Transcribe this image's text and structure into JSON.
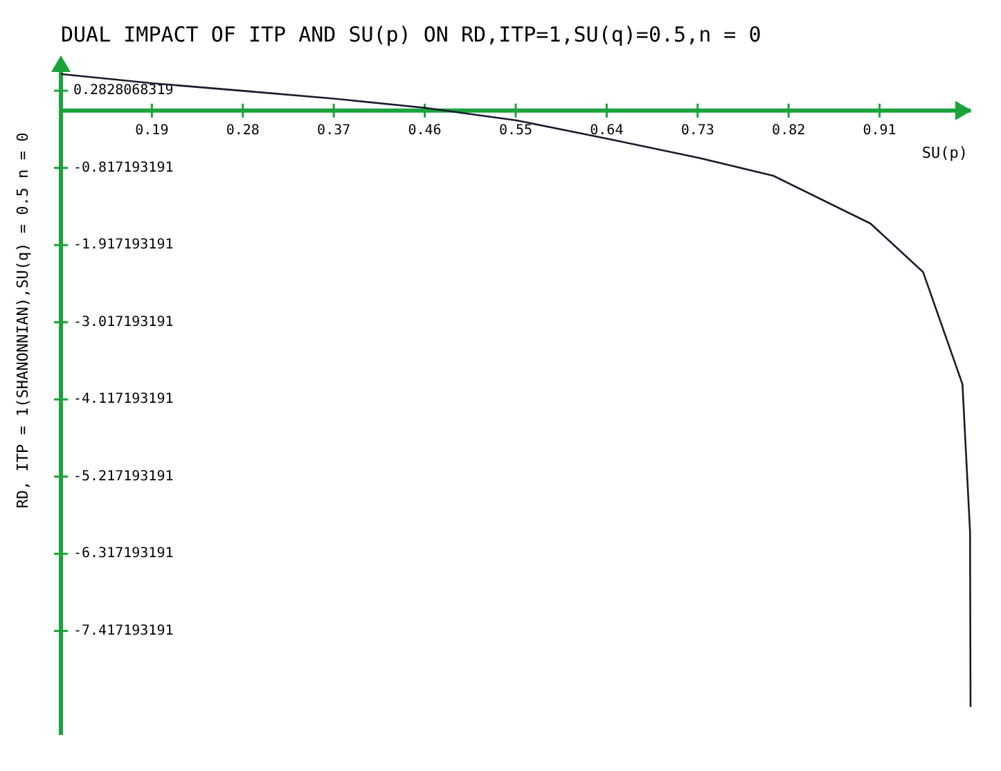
{
  "chart_data": {
    "type": "line",
    "title": "DUAL IMPACT OF ITP AND SU(p) ON RD,ITP=1,SU(q)=0.5,n = 0",
    "xlabel": "SU(p)",
    "ylabel": "RD, ITP = 1(SHANONNIAN),SU(q) = 0.5 n = 0",
    "x": [
      0.1,
      0.19,
      0.281,
      0.37,
      0.46,
      0.551,
      0.64,
      0.73,
      0.805,
      0.901,
      0.953,
      0.992,
      0.9995,
      1.0
    ],
    "series": [
      {
        "color": "#1a1a2e",
        "values": [
          0.52,
          0.39,
          0.28,
          0.17,
          0.04,
          -0.14,
          -0.4,
          -0.67,
          -0.93,
          -1.61,
          -2.3,
          -3.9,
          -6.0,
          -8.5
        ]
      }
    ],
    "xlim": [
      0.1,
      1.0
    ],
    "ylim": [
      -8.9,
      0.55
    ],
    "xticks": [
      0.19,
      0.28,
      0.37,
      0.46,
      0.55,
      0.64,
      0.73,
      0.82,
      0.91
    ],
    "yticks": [
      0.2828068319,
      -0.817193191,
      -1.917193191,
      -3.017193191,
      -4.117193191,
      -5.217193191,
      -6.317193191,
      -7.417193191
    ],
    "marker": "none",
    "line_style": "solid"
  }
}
